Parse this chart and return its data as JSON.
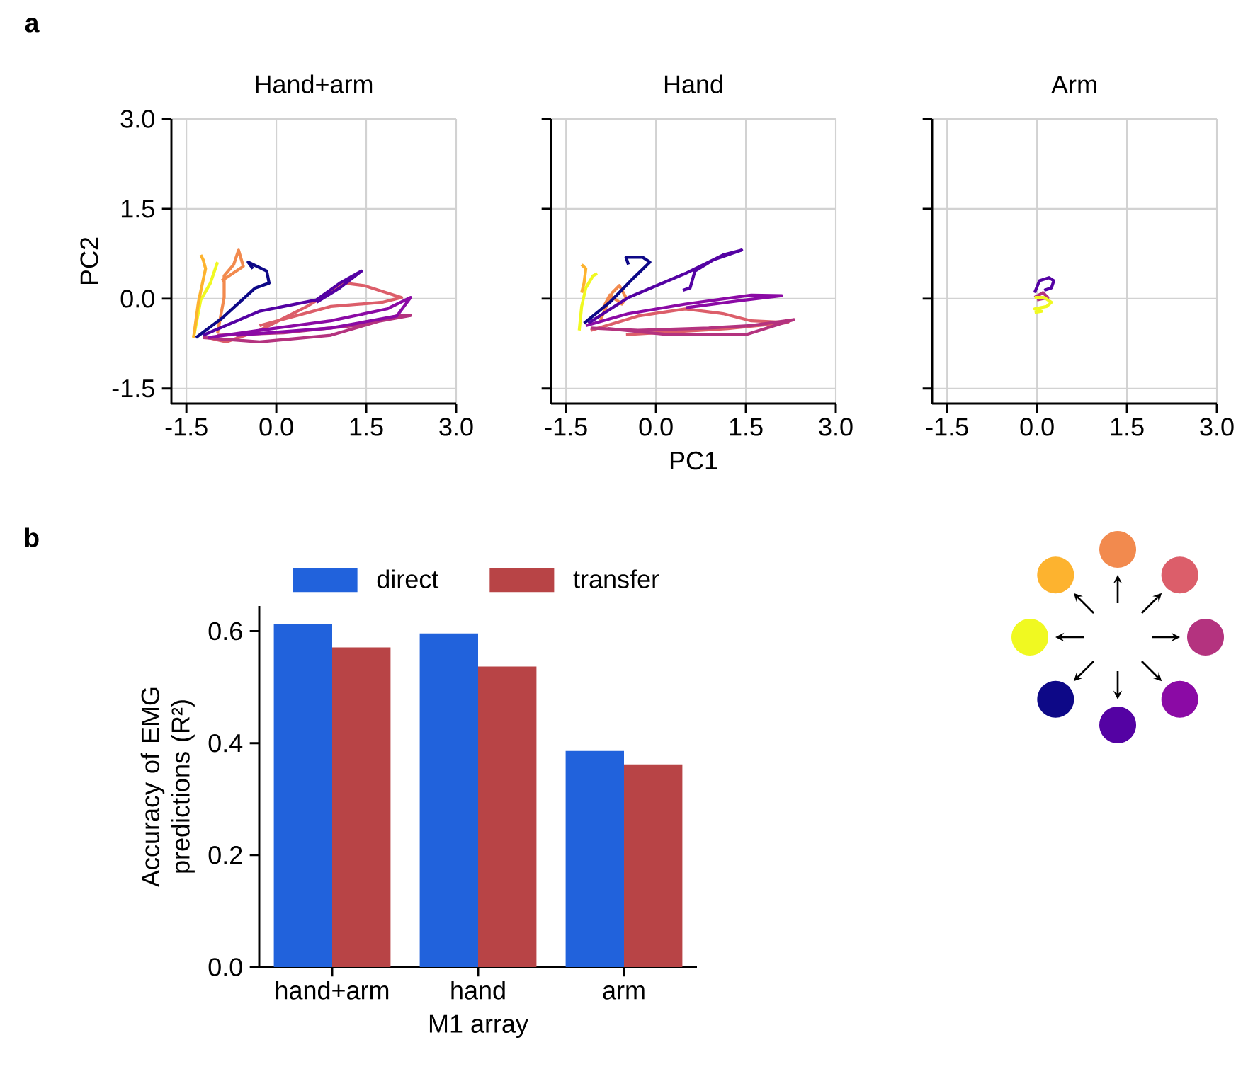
{
  "chart_data": [
    {
      "type": "line",
      "title": "Hand+arm",
      "ylabel": "PC2",
      "xlim": [
        -1.75,
        3.0
      ],
      "ylim": [
        -1.75,
        3.0
      ],
      "xticks": [
        {
          "value": -1.5,
          "label": "-1.5"
        },
        {
          "value": 0,
          "label": "0.0"
        },
        {
          "value": 1.5,
          "label": "1.5"
        },
        {
          "value": 3.0,
          "label": "3.0"
        }
      ],
      "yticks": [
        {
          "value": -1.5,
          "label": "-1.5"
        },
        {
          "value": 0,
          "label": "0.0"
        },
        {
          "value": 1.5,
          "label": "1.5"
        },
        {
          "value": 3.0,
          "label": "3.0"
        }
      ],
      "grid": true,
      "annotations": [
        "a"
      ],
      "series": [
        {
          "color": "#f28a4e",
          "x": [
            -0.98,
            -0.87,
            -0.87,
            -0.71,
            -0.63,
            -0.55,
            -0.91
          ],
          "values": [
            -0.57,
            0.02,
            0.38,
            0.57,
            0.81,
            0.54,
            0.3
          ]
        },
        {
          "color": "#dc5e6a",
          "x": [
            -1.14,
            -0.83,
            -0.28,
            0.51,
            1.14,
            1.46,
            2.09,
            1.77,
            0.91,
            -0.28
          ],
          "values": [
            -0.65,
            -0.72,
            -0.53,
            -0.13,
            0.26,
            0.22,
            0.02,
            -0.06,
            -0.13,
            -0.45
          ]
        },
        {
          "color": "#b4337f",
          "x": [
            -1.22,
            -0.28,
            0.91,
            2.01,
            2.24,
            1.3,
            0.12,
            -0.98
          ],
          "values": [
            -0.65,
            -0.72,
            -0.61,
            -0.29,
            -0.28,
            -0.45,
            -0.57,
            -0.61
          ]
        },
        {
          "color": "#8b0aa5",
          "x": [
            -1.14,
            -0.28,
            0.91,
            1.85,
            2.24,
            2.01,
            0.91,
            -0.67
          ],
          "values": [
            -0.65,
            -0.53,
            -0.37,
            -0.17,
            0.02,
            -0.29,
            -0.49,
            -0.61
          ]
        },
        {
          "color": "#5402a3",
          "x": [
            -1.22,
            -0.28,
            0.67,
            1.06,
            1.42,
            1.06,
            0.67
          ],
          "values": [
            -0.61,
            -0.21,
            -0.02,
            0.26,
            0.46,
            0.18,
            -0.06
          ]
        },
        {
          "color": "#0d0887",
          "x": [
            -1.34,
            -0.91,
            -0.35,
            -0.12,
            -0.16,
            -0.47,
            -0.39
          ],
          "values": [
            -0.65,
            -0.33,
            0.18,
            0.26,
            0.46,
            0.61,
            0.5
          ]
        },
        {
          "color": "#f0f921",
          "x": [
            -1.38,
            -1.26,
            -1.1,
            -0.98
          ],
          "values": [
            -0.65,
            -0.02,
            0.26,
            0.61
          ]
        },
        {
          "color": "#fdb32f",
          "x": [
            -1.38,
            -1.3,
            -1.18,
            -1.22,
            -1.26
          ],
          "values": [
            -0.65,
            -0.06,
            0.5,
            0.65,
            0.73
          ]
        }
      ]
    },
    {
      "type": "line",
      "title": "Hand",
      "xlabel": "PC1",
      "xlim": [
        -1.75,
        3.0
      ],
      "ylim": [
        -1.75,
        3.0
      ],
      "tick_labels": "x",
      "xticks": [
        {
          "value": -1.5,
          "label": "-1.5"
        },
        {
          "value": 0,
          "label": "0.0"
        },
        {
          "value": 1.5,
          "label": "1.5"
        },
        {
          "value": 3.0,
          "label": "3.0"
        }
      ],
      "yticks": [
        {
          "value": -1.5,
          "label": null
        },
        {
          "value": 0,
          "label": null
        },
        {
          "value": 1.5,
          "label": null
        },
        {
          "value": 3.0,
          "label": null
        }
      ],
      "grid": true,
      "series": [
        {
          "color": "#f28a4e",
          "x": [
            -0.93,
            -0.73,
            -0.61,
            -0.5,
            -0.57,
            -0.77,
            -0.89
          ],
          "values": [
            -0.37,
            0.1,
            0.22,
            0.02,
            -0.09,
            0.06,
            -0.17
          ]
        },
        {
          "color": "#dc5e6a",
          "x": [
            -1.09,
            -0.3,
            0.49,
            1.12,
            1.59,
            2.2,
            1.2,
            -0.5
          ],
          "values": [
            -0.53,
            -0.29,
            -0.17,
            -0.25,
            -0.37,
            -0.4,
            -0.5,
            -0.6
          ]
        },
        {
          "color": "#b4337f",
          "x": [
            -1.09,
            -0.3,
            0.88,
            1.59,
            2.3,
            1.5,
            0.2,
            -0.8
          ],
          "values": [
            -0.49,
            -0.53,
            -0.49,
            -0.45,
            -0.35,
            -0.6,
            -0.6,
            -0.5
          ]
        },
        {
          "color": "#8b0aa5",
          "x": [
            -1.17,
            -0.46,
            0.49,
            1.59,
            2.1,
            1.5,
            0.5
          ],
          "values": [
            -0.45,
            -0.25,
            -0.09,
            0.06,
            0.05,
            -0.02,
            -0.15
          ]
        },
        {
          "color": "#5402a3",
          "x": [
            -1.13,
            -0.46,
            0.49,
            1.12,
            1.43,
            0.96,
            0.65,
            0.57,
            0.45
          ],
          "values": [
            -0.41,
            0.02,
            0.42,
            0.73,
            0.81,
            0.65,
            0.46,
            0.18,
            0.14
          ]
        },
        {
          "color": "#0d0887",
          "x": [
            -1.2,
            -0.77,
            -0.38,
            -0.1,
            -0.22,
            -0.5,
            -0.46
          ],
          "values": [
            -0.41,
            -0.06,
            0.34,
            0.61,
            0.69,
            0.69,
            0.57
          ]
        },
        {
          "color": "#f0f921",
          "x": [
            -1.28,
            -1.24,
            -1.17,
            -1.05,
            -0.98
          ],
          "values": [
            -0.53,
            -0.13,
            0.18,
            0.38,
            0.42
          ]
        },
        {
          "color": "#fdb32f",
          "x": [
            -1.24,
            -1.17,
            -1.2,
            -1.24
          ],
          "values": [
            0.57,
            0.5,
            0.26,
            0.1
          ]
        }
      ]
    },
    {
      "type": "line",
      "title": "Arm",
      "xlim": [
        -1.75,
        3.0
      ],
      "ylim": [
        -1.75,
        3.0
      ],
      "tick_labels": "x",
      "xticks": [
        {
          "value": -1.5,
          "label": "-1.5"
        },
        {
          "value": 0,
          "label": "0.0"
        },
        {
          "value": 1.5,
          "label": "1.5"
        },
        {
          "value": 3.0,
          "label": "3.0"
        }
      ],
      "yticks": [
        {
          "value": -1.5,
          "label": null
        },
        {
          "value": 0,
          "label": null
        },
        {
          "value": 1.5,
          "label": null
        },
        {
          "value": 3.0,
          "label": null
        }
      ],
      "grid": true,
      "series": [
        {
          "color": "#b4337f",
          "x": [
            -0.04,
            0.1,
            0.18,
            0.0
          ],
          "values": [
            0.02,
            0.1,
            0.02,
            -0.02
          ]
        },
        {
          "color": "#5402a3",
          "x": [
            -0.04,
            0.04,
            0.2,
            0.28,
            0.24,
            0.12
          ],
          "values": [
            0.1,
            0.3,
            0.35,
            0.3,
            0.18,
            0.14
          ]
        },
        {
          "color": "#f0f921",
          "x": [
            -0.04,
            0.12,
            0.24,
            0.16,
            -0.04,
            0.08,
            -0.04
          ],
          "values": [
            0.02,
            0.02,
            -0.06,
            -0.13,
            -0.17,
            -0.21,
            -0.23
          ]
        }
      ]
    },
    {
      "type": "bar",
      "xlabel": "M1 array",
      "ylabel": "Accuracy of EMG predictions (R²)",
      "categories": [
        "hand+arm",
        "hand",
        "arm"
      ],
      "ylim": [
        0,
        0.645
      ],
      "yticks": [
        {
          "value": 0,
          "label": "0.0"
        },
        {
          "value": 0.2,
          "label": "0.2"
        },
        {
          "value": 0.4,
          "label": "0.4"
        },
        {
          "value": 0.6,
          "label": "0.6"
        }
      ],
      "legend": "top",
      "annotations": [
        "b"
      ],
      "series": [
        {
          "name": "direct",
          "color": "#2162dc",
          "values": [
            0.612,
            0.596,
            0.386
          ]
        },
        {
          "name": "transfer",
          "color": "#b84446",
          "values": [
            0.571,
            0.537,
            0.362
          ]
        }
      ]
    }
  ]
}
